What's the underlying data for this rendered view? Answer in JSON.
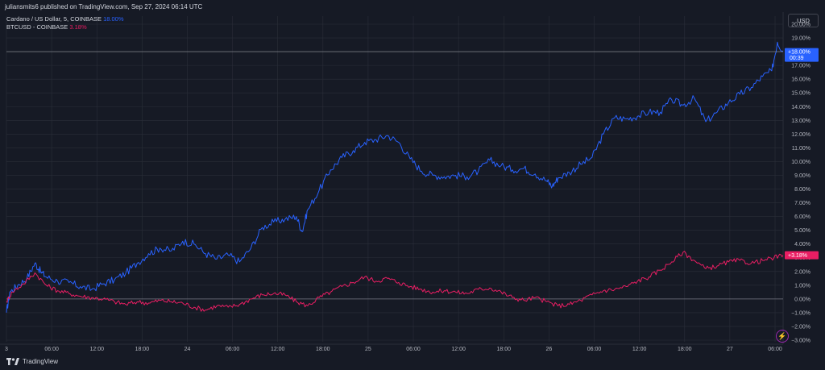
{
  "header": {
    "published": "juliansmits6 published on TradingView.com, Sep 27, 2024 06:14 UTC"
  },
  "legend": [
    {
      "name": "Cardano / US Dollar, 5, COINBASE",
      "value": "18.00%",
      "color": "#2962ff"
    },
    {
      "name": "BTCUSD - COINBASE",
      "value": "3.18%",
      "color": "#e91e63"
    }
  ],
  "currency_button": "USD",
  "footer": {
    "brand": "TradingView"
  },
  "colors": {
    "background": "#161a25",
    "grid": "#2a2e39",
    "ada": "#2962ff",
    "btc": "#e91e63"
  },
  "chart_data": {
    "type": "line",
    "title": "",
    "xlabel": "",
    "ylabel": "",
    "x_ticks": [
      "3",
      "06:00",
      "12:00",
      "18:00",
      "24",
      "06:00",
      "12:00",
      "18:00",
      "25",
      "06:00",
      "12:00",
      "18:00",
      "26",
      "06:00",
      "12:00",
      "18:00",
      "27",
      "06:00"
    ],
    "y_ticks": [
      "20.00%",
      "19.00%",
      "18.00%",
      "17.00%",
      "16.00%",
      "15.00%",
      "14.00%",
      "13.00%",
      "12.00%",
      "11.00%",
      "10.00%",
      "9.00%",
      "8.00%",
      "7.00%",
      "6.00%",
      "5.00%",
      "4.00%",
      "3.00%",
      "2.00%",
      "1.00%",
      "0.00%",
      "−1.00%",
      "−2.00%",
      "−3.00%"
    ],
    "ylim": [
      -3,
      20
    ],
    "x_range": [
      0,
      68.3
    ],
    "series": [
      {
        "name": "Cardano / US Dollar, 5, COINBASE",
        "color": "#2962ff",
        "last_label": "+18.00%",
        "countdown": "00:39",
        "points": [
          [
            0,
            -1.0
          ],
          [
            0.3,
            0.5
          ],
          [
            1,
            1.0
          ],
          [
            1.8,
            1.5
          ],
          [
            2.5,
            2.6
          ],
          [
            3,
            2.0
          ],
          [
            3.5,
            1.6
          ],
          [
            4.5,
            1.3
          ],
          [
            5.5,
            1.2
          ],
          [
            6.5,
            0.9
          ],
          [
            7.5,
            0.7
          ],
          [
            8.5,
            1.1
          ],
          [
            9.5,
            1.4
          ],
          [
            10.5,
            1.9
          ],
          [
            11.5,
            2.6
          ],
          [
            12.5,
            3.3
          ],
          [
            13.5,
            3.7
          ],
          [
            14.5,
            3.5
          ],
          [
            15.5,
            4.2
          ],
          [
            16.5,
            4.0
          ],
          [
            17.5,
            3.3
          ],
          [
            18.5,
            2.9
          ],
          [
            19.5,
            3.2
          ],
          [
            20.5,
            2.7
          ],
          [
            21.5,
            3.7
          ],
          [
            22.5,
            5.2
          ],
          [
            23.5,
            5.6
          ],
          [
            24.5,
            5.8
          ],
          [
            25.5,
            6.0
          ],
          [
            26,
            4.9
          ],
          [
            26.5,
            6.5
          ],
          [
            27.5,
            7.9
          ],
          [
            28.5,
            9.4
          ],
          [
            29.5,
            10.3
          ],
          [
            30.5,
            10.8
          ],
          [
            31.5,
            11.4
          ],
          [
            32.5,
            11.6
          ],
          [
            33.5,
            11.9
          ],
          [
            34.5,
            11.4
          ],
          [
            35.5,
            10.2
          ],
          [
            36.5,
            9.3
          ],
          [
            37.5,
            9.0
          ],
          [
            38.5,
            8.9
          ],
          [
            39.5,
            9.0
          ],
          [
            40.5,
            8.9
          ],
          [
            41.5,
            9.3
          ],
          [
            42.5,
            10.1
          ],
          [
            43.5,
            9.7
          ],
          [
            44.5,
            9.4
          ],
          [
            45.5,
            9.5
          ],
          [
            46.5,
            9.1
          ],
          [
            47.5,
            8.6
          ],
          [
            48,
            8.2
          ],
          [
            48.5,
            8.8
          ],
          [
            49.5,
            9.2
          ],
          [
            50.5,
            9.8
          ],
          [
            51.5,
            10.3
          ],
          [
            52.5,
            12.0
          ],
          [
            53.5,
            13.2
          ],
          [
            54.5,
            13.1
          ],
          [
            55.5,
            13.3
          ],
          [
            56.5,
            13.6
          ],
          [
            57.5,
            13.6
          ],
          [
            58.5,
            14.5
          ],
          [
            59.5,
            14.1
          ],
          [
            60.5,
            14.6
          ],
          [
            61.5,
            12.9
          ],
          [
            62.5,
            13.6
          ],
          [
            63.5,
            14.3
          ],
          [
            64.5,
            14.9
          ],
          [
            65.5,
            15.4
          ],
          [
            66.5,
            16.2
          ],
          [
            67.3,
            16.6
          ],
          [
            67.8,
            18.7
          ],
          [
            68.3,
            18.0
          ]
        ]
      },
      {
        "name": "BTCUSD - COINBASE",
        "color": "#e91e63",
        "last_label": "+3.18%",
        "points": [
          [
            0,
            -0.2
          ],
          [
            0.5,
            0.5
          ],
          [
            1.5,
            1.1
          ],
          [
            2.5,
            1.9
          ],
          [
            3.5,
            1.0
          ],
          [
            4.5,
            0.6
          ],
          [
            5.5,
            0.4
          ],
          [
            6.5,
            0.2
          ],
          [
            7.5,
            0.1
          ],
          [
            8.5,
            0.0
          ],
          [
            9.5,
            -0.2
          ],
          [
            10.5,
            -0.4
          ],
          [
            11.5,
            -0.2
          ],
          [
            12.5,
            -0.3
          ],
          [
            13.5,
            -0.1
          ],
          [
            14.5,
            -0.2
          ],
          [
            15.5,
            -0.3
          ],
          [
            16.5,
            -0.6
          ],
          [
            17.5,
            -0.8
          ],
          [
            18.5,
            -0.5
          ],
          [
            19.5,
            -0.6
          ],
          [
            20.5,
            -0.4
          ],
          [
            21.5,
            0.0
          ],
          [
            22.5,
            0.3
          ],
          [
            23.5,
            0.4
          ],
          [
            24.5,
            0.3
          ],
          [
            25.5,
            -0.2
          ],
          [
            26.5,
            -0.5
          ],
          [
            27.5,
            0.1
          ],
          [
            28.5,
            0.5
          ],
          [
            29.5,
            0.9
          ],
          [
            30.5,
            1.2
          ],
          [
            31.5,
            1.6
          ],
          [
            32.5,
            1.3
          ],
          [
            33.5,
            1.5
          ],
          [
            34.5,
            1.2
          ],
          [
            35.5,
            0.9
          ],
          [
            36.5,
            0.7
          ],
          [
            37.5,
            0.5
          ],
          [
            38.5,
            0.6
          ],
          [
            39.5,
            0.5
          ],
          [
            40.5,
            0.4
          ],
          [
            41.5,
            0.7
          ],
          [
            42.5,
            0.8
          ],
          [
            43.5,
            0.5
          ],
          [
            44.5,
            0.1
          ],
          [
            45.5,
            -0.1
          ],
          [
            46.5,
            0.1
          ],
          [
            47.5,
            -0.2
          ],
          [
            48.5,
            -0.5
          ],
          [
            49.5,
            -0.4
          ],
          [
            50.5,
            -0.1
          ],
          [
            51.5,
            0.3
          ],
          [
            52.5,
            0.6
          ],
          [
            53.5,
            0.7
          ],
          [
            54.5,
            0.9
          ],
          [
            55.5,
            1.3
          ],
          [
            56.5,
            1.6
          ],
          [
            57.5,
            2.1
          ],
          [
            58.5,
            2.7
          ],
          [
            59.5,
            3.4
          ],
          [
            60.5,
            2.8
          ],
          [
            61.5,
            2.2
          ],
          [
            62.5,
            2.4
          ],
          [
            63.5,
            2.7
          ],
          [
            64.5,
            2.8
          ],
          [
            65.5,
            2.6
          ],
          [
            66.5,
            2.8
          ],
          [
            67.5,
            3.0
          ],
          [
            68.3,
            3.18
          ]
        ]
      }
    ],
    "zero_line": true,
    "grid": true,
    "legend_position": "top-left",
    "axis_position": "right"
  }
}
